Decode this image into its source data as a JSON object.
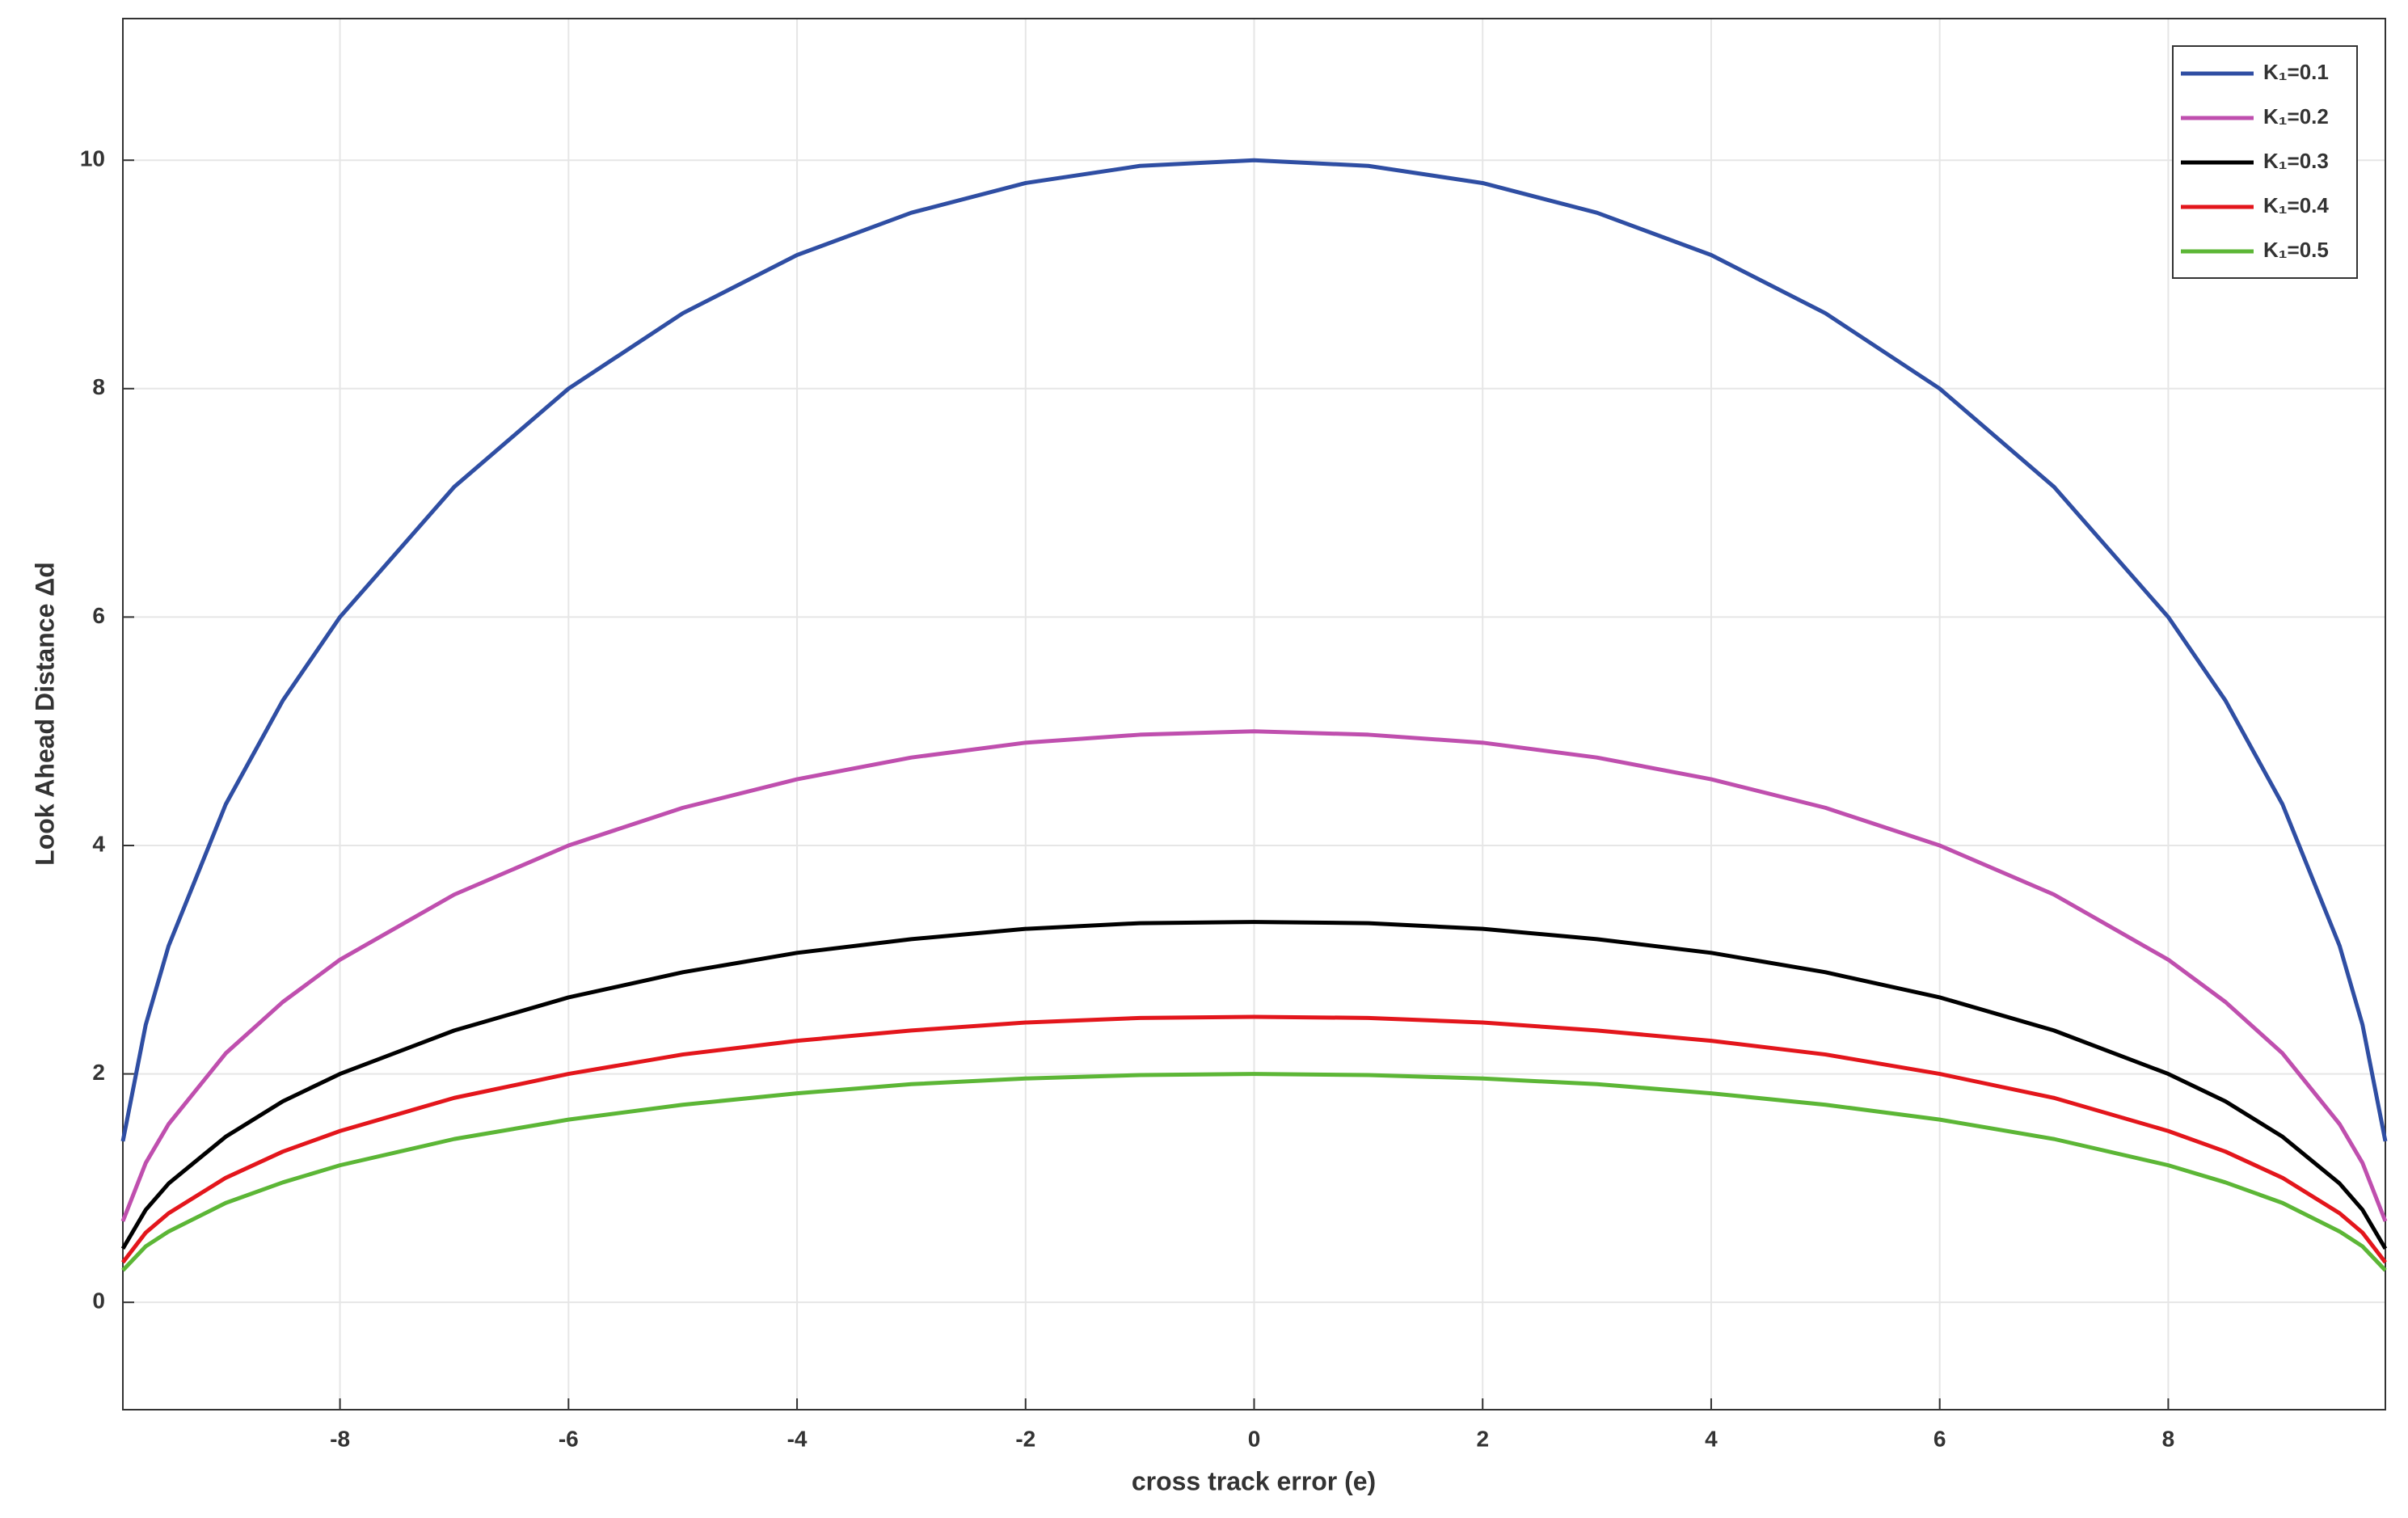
{
  "chart_data": {
    "type": "line",
    "xlabel": "cross track error (e)",
    "ylabel": "Look Ahead Distance Δd",
    "x": [
      -9.9,
      -9.7,
      -9.5,
      -9,
      -8.5,
      -8,
      -7,
      -6,
      -5,
      -4,
      -3,
      -2,
      -1,
      0,
      1,
      2,
      3,
      4,
      5,
      6,
      7,
      8,
      8.5,
      9,
      9.5,
      9.7,
      9.9
    ],
    "series": [
      {
        "name": "K₁=0.1",
        "color": "#2f4ea3",
        "values": [
          1.41,
          2.43,
          3.12,
          4.36,
          5.27,
          6,
          7.14,
          8,
          8.66,
          9.17,
          9.54,
          9.8,
          9.95,
          10,
          9.95,
          9.8,
          9.54,
          9.17,
          8.66,
          8,
          7.14,
          6,
          5.27,
          4.36,
          3.12,
          2.43,
          1.41
        ]
      },
      {
        "name": "K₁=0.2",
        "color": "#bf4fae",
        "values": [
          0.71,
          1.22,
          1.56,
          2.18,
          2.63,
          3,
          3.57,
          4,
          4.33,
          4.58,
          4.77,
          4.9,
          4.97,
          5,
          4.97,
          4.9,
          4.77,
          4.58,
          4.33,
          4,
          3.57,
          3,
          2.63,
          2.18,
          1.56,
          1.22,
          0.71
        ]
      },
      {
        "name": "K₁=0.3",
        "color": "#000000",
        "values": [
          0.47,
          0.81,
          1.04,
          1.45,
          1.76,
          2,
          2.38,
          2.67,
          2.89,
          3.06,
          3.18,
          3.27,
          3.32,
          3.33,
          3.32,
          3.27,
          3.18,
          3.06,
          2.89,
          2.67,
          2.38,
          2,
          1.76,
          1.45,
          1.04,
          0.81,
          0.47
        ]
      },
      {
        "name": "K₁=0.4",
        "color": "#e3161c",
        "values": [
          0.35,
          0.61,
          0.78,
          1.09,
          1.32,
          1.5,
          1.79,
          2,
          2.17,
          2.29,
          2.38,
          2.45,
          2.49,
          2.5,
          2.49,
          2.45,
          2.38,
          2.29,
          2.17,
          2,
          1.79,
          1.5,
          1.32,
          1.09,
          0.78,
          0.61,
          0.35
        ]
      },
      {
        "name": "K₁=0.5",
        "color": "#5cb636",
        "values": [
          0.28,
          0.49,
          0.62,
          0.87,
          1.05,
          1.2,
          1.43,
          1.6,
          1.73,
          1.83,
          1.91,
          1.96,
          1.99,
          2,
          1.99,
          1.96,
          1.91,
          1.83,
          1.73,
          1.6,
          1.43,
          1.2,
          1.05,
          0.87,
          0.62,
          0.49,
          0.28
        ]
      }
    ],
    "xlim": [
      -9.9,
      9.9
    ],
    "ylim": [
      -0.94,
      11.24
    ],
    "xticks": [
      -8,
      -6,
      -4,
      -2,
      0,
      2,
      4,
      6,
      8
    ],
    "yticks": [
      0,
      2,
      4,
      6,
      8,
      10
    ],
    "grid": true,
    "legend": "top-right"
  }
}
